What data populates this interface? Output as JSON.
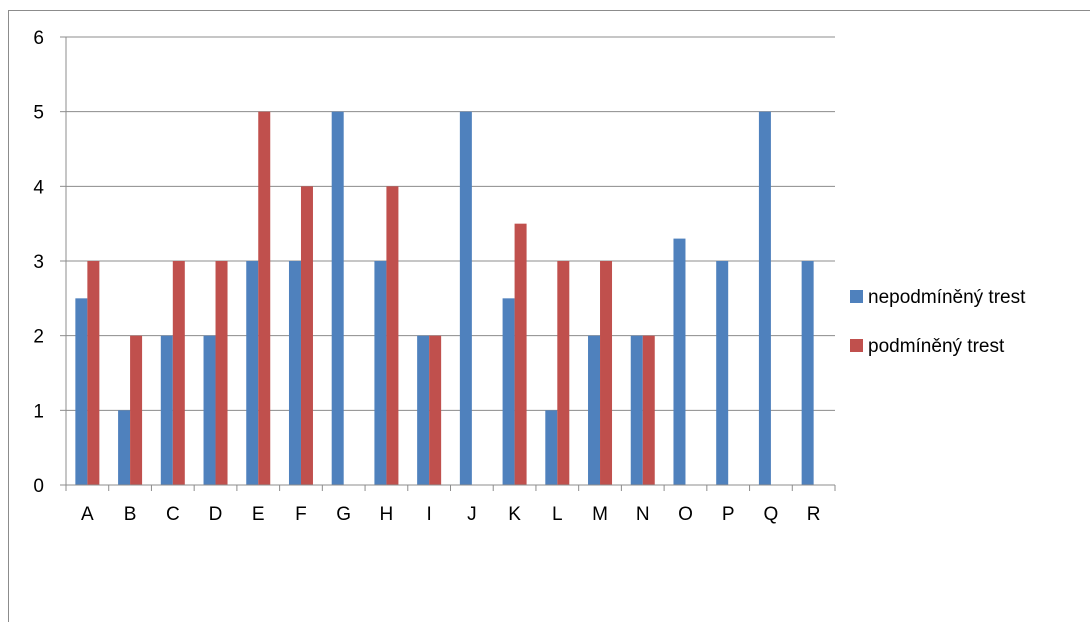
{
  "chart_data": {
    "type": "bar",
    "categories": [
      "A",
      "B",
      "C",
      "D",
      "E",
      "F",
      "G",
      "H",
      "I",
      "J",
      "K",
      "L",
      "M",
      "N",
      "O",
      "P",
      "Q",
      "R"
    ],
    "series": [
      {
        "name": "nepodmíněný trest",
        "color": "#4f81bd",
        "values": [
          2.5,
          1,
          2,
          2,
          3,
          3,
          5,
          3,
          2,
          5,
          2.5,
          1,
          2,
          2,
          3.3,
          3,
          5,
          3
        ]
      },
      {
        "name": "podmíněný trest",
        "color": "#c0504d",
        "values": [
          3,
          2,
          3,
          3,
          5,
          4,
          null,
          4,
          2,
          null,
          3.5,
          3,
          3,
          2,
          null,
          null,
          null,
          null
        ]
      }
    ],
    "ylim": [
      0,
      6
    ],
    "yticks": [
      "0",
      "1",
      "2",
      "3",
      "4",
      "5",
      "6"
    ],
    "grid": true,
    "legend_position": "right"
  }
}
